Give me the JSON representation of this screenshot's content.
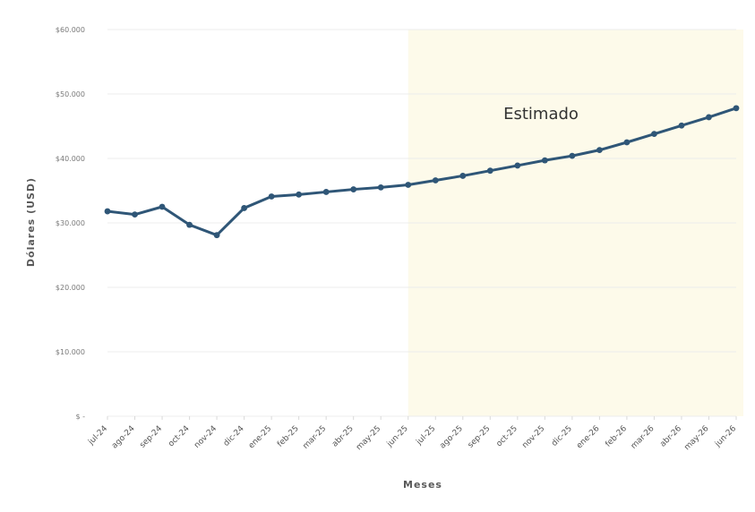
{
  "chart_data": {
    "type": "line",
    "title": "",
    "xlabel": "Meses",
    "ylabel": "Dólares (USD)",
    "ylim": [
      0,
      60000
    ],
    "yticks": [
      {
        "value": 0,
        "label": "$ -"
      },
      {
        "value": 10000,
        "label": "$10.000"
      },
      {
        "value": 20000,
        "label": "$20.000"
      },
      {
        "value": 30000,
        "label": "$30.000"
      },
      {
        "value": 40000,
        "label": "$40.000"
      },
      {
        "value": 50000,
        "label": "$50.000"
      },
      {
        "value": 60000,
        "label": "$60.000"
      }
    ],
    "grid": true,
    "categories": [
      "jul-24",
      "ago-24",
      "sep-24",
      "oct-24",
      "nov-24",
      "dic-24",
      "ene-25",
      "feb-25",
      "mar-25",
      "abr-25",
      "may-25",
      "jun-25",
      "jul-25",
      "ago-25",
      "sep-25",
      "oct-25",
      "nov-25",
      "dic-25",
      "ene-26",
      "feb-26",
      "mar-26",
      "abr-26",
      "may-26",
      "jun-26"
    ],
    "series": [
      {
        "color": "#2f5677",
        "values": [
          31800,
          31300,
          32500,
          29700,
          28100,
          32300,
          34100,
          34400,
          34800,
          35200,
          35500,
          35900,
          36600,
          37300,
          38100,
          38900,
          39700,
          40400,
          41300,
          42500,
          43800,
          45100,
          46400,
          47800
        ]
      }
    ],
    "estimate_region": {
      "label": "Estimado",
      "start_category": "jun-25",
      "end_category": "jun-26",
      "color": "#fdfaea"
    }
  }
}
